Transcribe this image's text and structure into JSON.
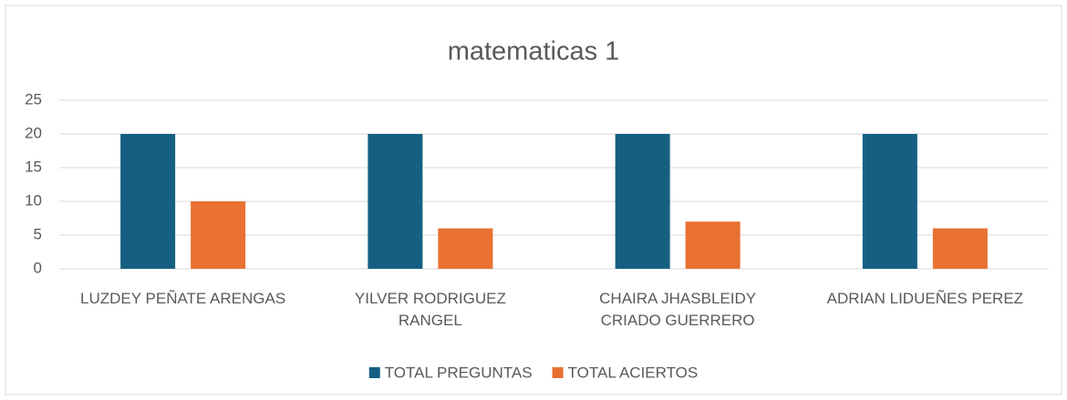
{
  "chart_data": {
    "type": "bar",
    "title": "matematicas 1",
    "categories": [
      "LUZDEY PEÑATE ARENGAS",
      "YILVER RODRIGUEZ RANGEL",
      "CHAIRA JHASBLEIDY CRIADO GUERRERO",
      "ADRIAN LIDUEÑES PEREZ"
    ],
    "series": [
      {
        "name": "TOTAL PREGUNTAS",
        "color": "#156082",
        "values": [
          20,
          20,
          20,
          20
        ]
      },
      {
        "name": "TOTAL ACIERTOS",
        "color": "#e97132",
        "values": [
          10,
          6,
          7,
          6
        ]
      }
    ],
    "ylim": [
      0,
      25
    ],
    "yticks": [
      0,
      5,
      10,
      15,
      20,
      25
    ],
    "grid": true,
    "legend": "bottom"
  }
}
